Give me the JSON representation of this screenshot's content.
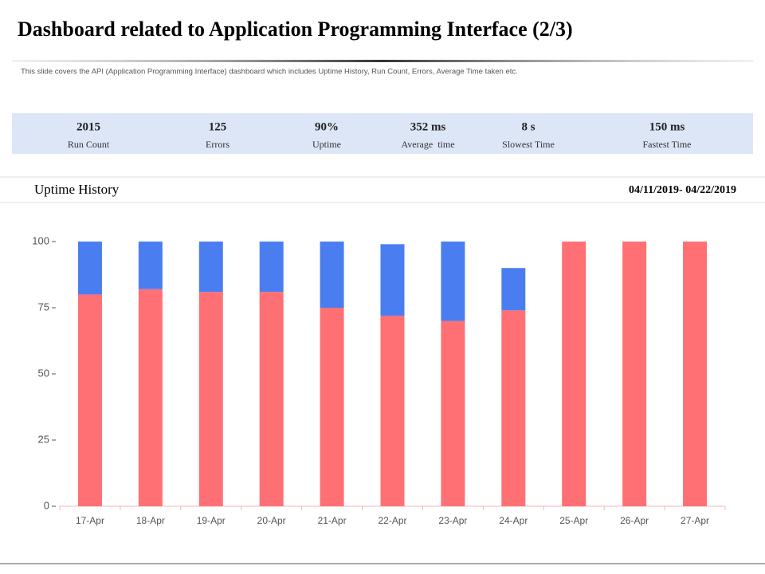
{
  "header": {
    "title": "Dashboard related to Application Programming Interface (2/3)",
    "subtitle": "This slide covers the API (Application Programming Interface) dashboard which includes Uptime History, Run Count, Errors, Average Time taken etc."
  },
  "stats": [
    {
      "value": "2015",
      "label": "Run Count"
    },
    {
      "value": "125",
      "label": "Errors"
    },
    {
      "value": "90%",
      "label": "Uptime"
    },
    {
      "value": "352 ms",
      "label": "Average  time"
    },
    {
      "value": "8 s",
      "label": "Slowest Time"
    },
    {
      "value": "150 ms",
      "label": "Fastest Time"
    }
  ],
  "section": {
    "title": "Uptime History",
    "date_range": "04/11/2019-  04/22/2019"
  },
  "chart_data": {
    "type": "stacked-bar",
    "categories": [
      "17-Apr",
      "18-Apr",
      "19-Apr",
      "20-Apr",
      "21-Apr",
      "22-Apr",
      "23-Apr",
      "24-Apr",
      "25-Apr",
      "26-Apr",
      "27-Apr"
    ],
    "series": [
      {
        "color": "#ff7074",
        "values": [
          80,
          82,
          81,
          81,
          75,
          72,
          70,
          74,
          100,
          100,
          100
        ]
      },
      {
        "color": "#4a7ef0",
        "values": [
          20,
          18,
          19,
          19,
          25,
          27,
          30,
          16,
          0,
          0,
          0
        ]
      }
    ],
    "ylim": [
      0,
      100
    ],
    "yticks": [
      0,
      25,
      50,
      75,
      100
    ],
    "grid": false
  }
}
